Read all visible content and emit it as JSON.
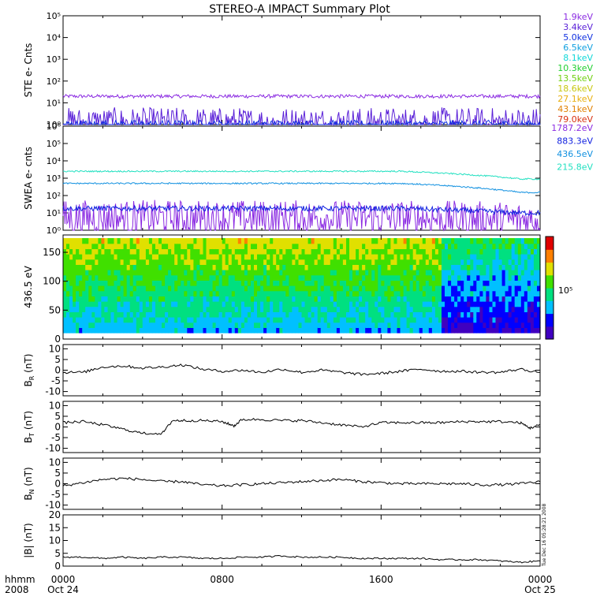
{
  "title": "STEREO-A IMPACT Summary Plot",
  "footer": {
    "row1_label": "hhmm",
    "row2_label": "2008",
    "ticks": [
      {
        "time": "0000",
        "date": "Oct 24",
        "hour": 0
      },
      {
        "time": "0800",
        "date": "",
        "hour": 8
      },
      {
        "time": "1600",
        "date": "",
        "hour": 16
      },
      {
        "time": "0000",
        "date": "Oct 25",
        "hour": 24
      }
    ],
    "stamp": "Tue Dec 16 05:28:21 2008"
  },
  "colors": {
    "ste": [
      "#8b2be2",
      "#5a20d8",
      "#1030e0",
      "#10a0e0",
      "#10d8d8",
      "#20d030",
      "#70d010",
      "#c8c810",
      "#e8b010",
      "#e08000",
      "#d83010"
    ],
    "swea": [
      "#8b2be2",
      "#1020e0",
      "#1090e0",
      "#20e0c0"
    ],
    "mag": "#000000",
    "colorbar": [
      "#4000c0",
      "#0000ff",
      "#00c0ff",
      "#00e080",
      "#40e000",
      "#e0e000",
      "#ff8000",
      "#e00000"
    ]
  },
  "chart_data": [
    {
      "type": "line",
      "id": "ste",
      "ylabel": "STE e- Cnts",
      "yscale": "log",
      "ylim": [
        1,
        100000
      ],
      "yticks": [
        "10⁰",
        "10¹",
        "10²",
        "10³",
        "10⁴",
        "10⁵"
      ],
      "x_hours": [
        0,
        24
      ],
      "series": [
        {
          "name": "1.9keV",
          "level": 20,
          "noise": 0.08
        },
        {
          "name": "3.4keV",
          "level": 1.1,
          "noise": 0.25
        },
        {
          "name": "5.0keV",
          "level": 1.0,
          "noise": 0.2
        },
        {
          "name": "6.5keV"
        },
        {
          "name": "8.1keV"
        },
        {
          "name": "10.3keV"
        },
        {
          "name": "13.5keV"
        },
        {
          "name": "18.6keV"
        },
        {
          "name": "27.1keV"
        },
        {
          "name": "43.1keV"
        },
        {
          "name": "79.0keV"
        }
      ]
    },
    {
      "type": "line",
      "id": "swea",
      "ylabel": "SWEA e- cnts",
      "yscale": "log",
      "ylim": [
        1,
        1000000
      ],
      "yticks": [
        "10⁰",
        "10¹",
        "10²",
        "10³",
        "10⁴",
        "10⁵",
        "10⁶"
      ],
      "x_hours": [
        0,
        24
      ],
      "series": [
        {
          "name": "1787.2eV",
          "level": 5,
          "end_level": 4,
          "noise": 0.35
        },
        {
          "name": "883.3eV",
          "level": 18,
          "end_level": 10,
          "noise": 0.15
        },
        {
          "name": "436.5eV",
          "level": 500,
          "end_level": 150,
          "noise": 0.04
        },
        {
          "name": "215.8eV",
          "level": 2500,
          "end_level": 900,
          "noise": 0.04
        }
      ]
    },
    {
      "type": "heatmap",
      "id": "pad",
      "ylabel": "436.5 eV",
      "ylim": [
        0,
        180
      ],
      "yticks": [
        0,
        50,
        100,
        150
      ],
      "colorbar_label": "10⁵",
      "x_hours": [
        0,
        24
      ]
    },
    {
      "type": "line",
      "id": "br",
      "ylabel": "B",
      "ylabel_sub": "R",
      "ylabel_unit": " (nT)",
      "ylim": [
        -12,
        12
      ],
      "yticks": [
        -10,
        -5,
        0,
        5,
        10
      ],
      "series": [
        {
          "name": "BR",
          "points": [
            [
              0,
              -1
            ],
            [
              1,
              -1
            ],
            [
              2,
              1.5
            ],
            [
              3,
              2
            ],
            [
              4,
              1
            ],
            [
              5,
              1.5
            ],
            [
              6,
              2.5
            ],
            [
              7,
              0.5
            ],
            [
              8,
              -0.5
            ],
            [
              9,
              0
            ],
            [
              10,
              -1
            ],
            [
              11,
              0.5
            ],
            [
              12,
              -1
            ],
            [
              13,
              0
            ],
            [
              14,
              -1
            ],
            [
              15,
              -2
            ],
            [
              16,
              -1.5
            ],
            [
              17,
              -0.5
            ],
            [
              18,
              0.5
            ],
            [
              19,
              -0.5
            ],
            [
              20,
              -0.5
            ],
            [
              21,
              -1
            ],
            [
              22,
              -1
            ],
            [
              23,
              0.5
            ],
            [
              24,
              -1
            ]
          ]
        }
      ]
    },
    {
      "type": "line",
      "id": "bt",
      "ylabel": "B",
      "ylabel_sub": "T",
      "ylabel_unit": " (nT)",
      "ylim": [
        -12,
        12
      ],
      "yticks": [
        -10,
        -5,
        0,
        5,
        10
      ],
      "series": [
        {
          "name": "BT",
          "points": [
            [
              0,
              2
            ],
            [
              1,
              2.5
            ],
            [
              2,
              1
            ],
            [
              3,
              -1
            ],
            [
              4,
              -3
            ],
            [
              5,
              -3
            ],
            [
              5.5,
              3
            ],
            [
              6,
              3
            ],
            [
              7,
              3
            ],
            [
              8,
              2.5
            ],
            [
              8.6,
              0.5
            ],
            [
              9,
              3.5
            ],
            [
              10,
              3.5
            ],
            [
              11,
              3
            ],
            [
              12,
              3
            ],
            [
              13,
              2
            ],
            [
              14,
              1
            ],
            [
              15,
              0
            ],
            [
              16,
              2
            ],
            [
              17,
              2
            ],
            [
              18,
              2
            ],
            [
              19,
              2
            ],
            [
              20,
              2.5
            ],
            [
              21,
              2.5
            ],
            [
              22,
              2.5
            ],
            [
              23,
              2
            ],
            [
              23.5,
              -0.5
            ],
            [
              24,
              1
            ]
          ]
        }
      ]
    },
    {
      "type": "line",
      "id": "bn",
      "ylabel": "B",
      "ylabel_sub": "N",
      "ylabel_unit": " (nT)",
      "ylim": [
        -12,
        12
      ],
      "yticks": [
        -10,
        -5,
        0,
        5,
        10
      ],
      "series": [
        {
          "name": "BN",
          "points": [
            [
              0,
              -1
            ],
            [
              1,
              0.5
            ],
            [
              2,
              2
            ],
            [
              3,
              2.5
            ],
            [
              4,
              2
            ],
            [
              5,
              1
            ],
            [
              6,
              1
            ],
            [
              7,
              -0.5
            ],
            [
              8,
              -1
            ],
            [
              9,
              -0.5
            ],
            [
              10,
              0
            ],
            [
              11,
              0.5
            ],
            [
              12,
              1
            ],
            [
              13,
              1.5
            ],
            [
              14,
              2
            ],
            [
              15,
              1
            ],
            [
              16,
              0.5
            ],
            [
              17,
              0
            ],
            [
              18,
              0
            ],
            [
              19,
              0
            ],
            [
              20,
              0
            ],
            [
              21,
              -0.5
            ],
            [
              22,
              -0.5
            ],
            [
              23,
              0
            ],
            [
              24,
              1
            ]
          ]
        }
      ]
    },
    {
      "type": "line",
      "id": "bmag",
      "ylabel": "|B| (nT)",
      "ylim": [
        0,
        20
      ],
      "yticks": [
        0,
        5,
        10,
        15,
        20
      ],
      "series": [
        {
          "name": "B",
          "points": [
            [
              0,
              3.5
            ],
            [
              1,
              3.5
            ],
            [
              2,
              3
            ],
            [
              3,
              3.5
            ],
            [
              4,
              3
            ],
            [
              5,
              3.5
            ],
            [
              6,
              3.5
            ],
            [
              7,
              3
            ],
            [
              8,
              3
            ],
            [
              9,
              3.5
            ],
            [
              10,
              3.5
            ],
            [
              11,
              4
            ],
            [
              12,
              3.5
            ],
            [
              13,
              3.5
            ],
            [
              14,
              3.5
            ],
            [
              15,
              3
            ],
            [
              16,
              3
            ],
            [
              17,
              3
            ],
            [
              18,
              3
            ],
            [
              19,
              2.5
            ],
            [
              20,
              2.5
            ],
            [
              21,
              2.5
            ],
            [
              22,
              2
            ],
            [
              23,
              1.5
            ],
            [
              24,
              2
            ]
          ]
        }
      ]
    }
  ]
}
